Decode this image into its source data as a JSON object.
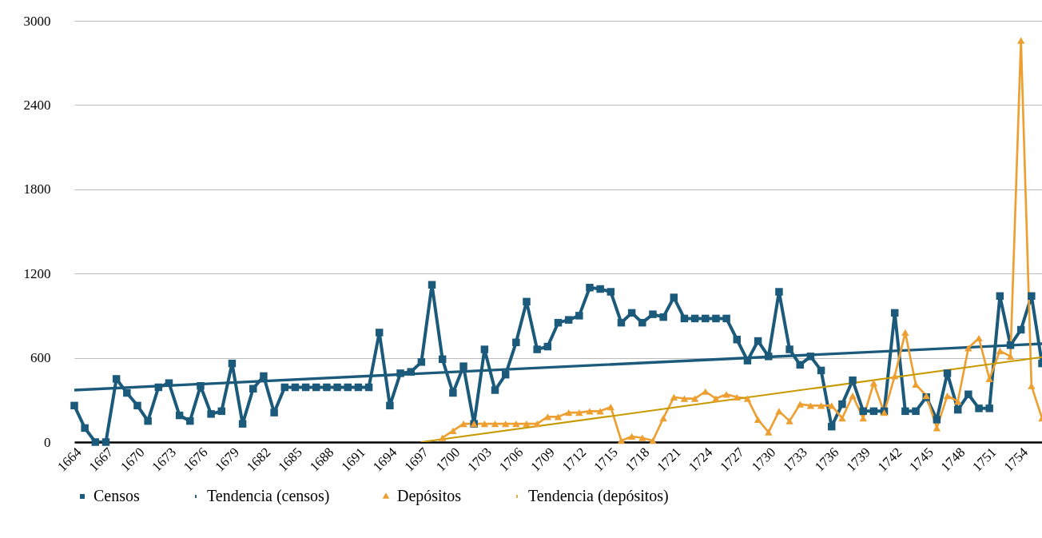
{
  "chart_data": {
    "type": "line",
    "x": [
      1664,
      1665,
      1666,
      1667,
      1668,
      1669,
      1670,
      1671,
      1672,
      1673,
      1674,
      1675,
      1676,
      1677,
      1678,
      1679,
      1680,
      1681,
      1682,
      1683,
      1684,
      1685,
      1686,
      1687,
      1688,
      1689,
      1690,
      1691,
      1692,
      1693,
      1694,
      1695,
      1696,
      1697,
      1698,
      1699,
      1700,
      1701,
      1702,
      1703,
      1704,
      1705,
      1706,
      1707,
      1708,
      1709,
      1710,
      1711,
      1712,
      1713,
      1714,
      1715,
      1716,
      1717,
      1718,
      1719,
      1720,
      1721,
      1722,
      1723,
      1724,
      1725,
      1726,
      1727,
      1728,
      1729,
      1730,
      1731,
      1732,
      1733,
      1734,
      1735,
      1736,
      1737,
      1738,
      1739,
      1740,
      1741,
      1742,
      1743,
      1744,
      1745,
      1746,
      1747,
      1748,
      1749,
      1750,
      1751,
      1752,
      1753,
      1754,
      1755,
      1756
    ],
    "series": [
      {
        "name": "Censos",
        "color": "#1b5a7b",
        "marker": "square",
        "values": [
          260,
          100,
          0,
          0,
          450,
          350,
          260,
          150,
          390,
          420,
          190,
          150,
          400,
          200,
          220,
          560,
          130,
          380,
          470,
          210,
          390,
          390,
          390,
          390,
          390,
          390,
          390,
          390,
          390,
          780,
          260,
          490,
          500,
          570,
          1120,
          590,
          350,
          540,
          130,
          660,
          370,
          480,
          710,
          1000,
          660,
          680,
          850,
          870,
          900,
          1100,
          1090,
          1070,
          850,
          920,
          850,
          910,
          890,
          1030,
          880,
          880,
          880,
          880,
          880,
          730,
          580,
          720,
          610,
          1070,
          660,
          550,
          610,
          510,
          110,
          270,
          440,
          220,
          220,
          220,
          920,
          220,
          220,
          320,
          160,
          490,
          230,
          340,
          240,
          240,
          1040,
          690,
          800,
          1040,
          560
        ]
      },
      {
        "name": "Tendencia (censos)",
        "color": "#1b5a7b",
        "marker": "none",
        "x": [
          1664,
          1756
        ],
        "values": [
          370,
          700
        ]
      },
      {
        "name": "Depósitos",
        "color": "#eda031",
        "marker": "triangle",
        "values": [
          null,
          null,
          null,
          null,
          null,
          null,
          null,
          null,
          null,
          null,
          null,
          null,
          null,
          null,
          null,
          null,
          null,
          null,
          null,
          null,
          null,
          null,
          null,
          null,
          null,
          null,
          null,
          null,
          null,
          null,
          null,
          null,
          null,
          null,
          null,
          30,
          80,
          130,
          130,
          130,
          130,
          130,
          130,
          130,
          130,
          180,
          180,
          210,
          210,
          220,
          220,
          250,
          10,
          40,
          30,
          10,
          170,
          320,
          310,
          310,
          360,
          310,
          340,
          320,
          310,
          160,
          70,
          220,
          150,
          270,
          260,
          260,
          260,
          170,
          330,
          170,
          420,
          210,
          470,
          780,
          410,
          330,
          100,
          330,
          290,
          670,
          740,
          450,
          650,
          610,
          2860,
          400,
          170
        ]
      },
      {
        "name": "Tendencia (depósitos)",
        "color": "#c89a00",
        "marker": "none",
        "x": [
          1697,
          1756
        ],
        "values": [
          0,
          605
        ]
      }
    ],
    "xlim": [
      1664,
      1756
    ],
    "xticks": [
      1664,
      1667,
      1670,
      1673,
      1676,
      1679,
      1682,
      1685,
      1688,
      1691,
      1694,
      1697,
      1700,
      1703,
      1706,
      1709,
      1712,
      1715,
      1718,
      1721,
      1724,
      1727,
      1730,
      1733,
      1736,
      1739,
      1742,
      1745,
      1748,
      1751,
      1754
    ],
    "ylim": [
      0,
      3000
    ],
    "yticks": [
      0,
      600,
      1200,
      1800,
      2400,
      3000
    ],
    "grid": "y",
    "legend": "bottom"
  }
}
